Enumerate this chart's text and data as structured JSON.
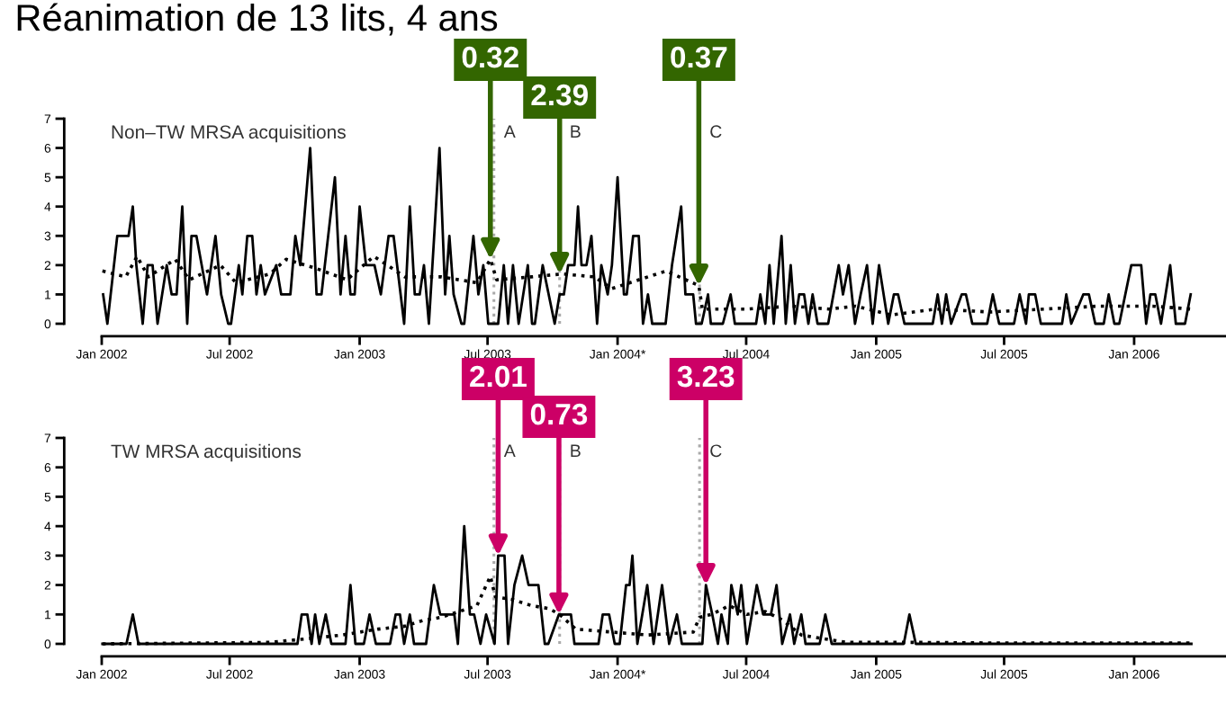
{
  "chart_data": [
    {
      "type": "line",
      "title": "Réanimation de 13 lits, 4 ans",
      "subtitle": "Non–TW MRSA acquisitions",
      "xlim": [
        "2002-01-01",
        "2006-05-11"
      ],
      "xticks": [
        {
          "value": "2002-01-01",
          "label": "Jan 2002"
        },
        {
          "value": "2002-07-01",
          "label": "Jul 2002"
        },
        {
          "value": "2003-01-01",
          "label": "Jan 2003"
        },
        {
          "value": "2003-07-01",
          "label": "Jul 2003"
        },
        {
          "value": "2004-01-01",
          "label": "Jan 2004*"
        },
        {
          "value": "2004-07-01",
          "label": "Jul 2004"
        },
        {
          "value": "2005-01-01",
          "label": "Jan 2005"
        },
        {
          "value": "2005-07-01",
          "label": "Jul 2005"
        },
        {
          "value": "2006-01-01",
          "label": "Jan 2006"
        }
      ],
      "ylim": [
        0,
        7
      ],
      "yticks": [
        0,
        1,
        2,
        3,
        4,
        5,
        6,
        7
      ],
      "ref_lines": [
        {
          "axis": "x",
          "value": "2003-07-10",
          "label": "A",
          "color": "#aaaaaa",
          "line_style": "dotted"
        },
        {
          "axis": "x",
          "value": "2003-10-11",
          "label": "B",
          "color": "#aaaaaa",
          "line_style": "dotted"
        },
        {
          "axis": "x",
          "value": "2004-04-26",
          "label": "C",
          "color": "#aaaaaa",
          "line_style": "dotted"
        }
      ],
      "annotations": [
        {
          "text": "0.32",
          "x": "2003-07-05",
          "y": 2.2
        },
        {
          "text": "2.39",
          "x": "2003-10-11",
          "y": 1.7
        },
        {
          "text": "0.37",
          "x": "2004-04-25",
          "y": 1.3
        }
      ],
      "series": [
        {
          "color": "#000000",
          "line_style": "solid",
          "x": [
            "2002-01-03",
            "2002-01-09",
            "2002-01-23",
            "2002-02-08",
            "2002-02-14",
            "2002-02-19",
            "2002-02-28",
            "2002-03-07",
            "2002-03-14",
            "2002-03-21",
            "2002-04-03",
            "2002-04-10",
            "2002-04-17",
            "2002-04-25",
            "2002-05-02",
            "2002-05-08",
            "2002-05-15",
            "2002-05-30",
            "2002-06-11",
            "2002-06-19",
            "2002-06-29",
            "2002-07-03",
            "2002-07-14",
            "2002-07-19",
            "2002-07-26",
            "2002-08-02",
            "2002-08-08",
            "2002-08-14",
            "2002-08-20",
            "2002-09-05",
            "2002-09-12",
            "2002-09-25",
            "2002-10-02",
            "2002-10-09",
            "2002-10-23",
            "2002-11-01",
            "2002-11-08",
            "2002-11-27",
            "2002-12-05",
            "2002-12-12",
            "2002-12-19",
            "2002-12-25",
            "2003-01-01",
            "2003-01-10",
            "2003-01-22",
            "2003-01-31",
            "2003-02-11",
            "2003-02-18",
            "2003-03-05",
            "2003-03-13",
            "2003-03-20",
            "2003-03-27",
            "2003-04-02",
            "2003-04-09",
            "2003-04-24",
            "2003-05-02",
            "2003-05-08",
            "2003-05-14",
            "2003-05-25",
            "2003-05-29",
            "2003-06-11",
            "2003-06-18",
            "2003-06-25",
            "2003-07-02",
            "2003-07-16",
            "2003-07-24",
            "2003-07-30",
            "2003-08-06",
            "2003-08-14",
            "2003-08-27",
            "2003-09-02",
            "2003-09-06",
            "2003-09-17",
            "2003-10-04",
            "2003-10-11",
            "2003-10-17",
            "2003-10-23",
            "2003-11-01",
            "2003-11-06",
            "2003-11-11",
            "2003-11-18",
            "2003-11-25",
            "2003-12-03",
            "2003-12-09",
            "2003-12-18",
            "2003-12-24",
            "2004-01-01",
            "2004-01-10",
            "2004-01-14",
            "2004-01-23",
            "2004-01-31",
            "2004-02-06",
            "2004-02-13",
            "2004-02-19",
            "2004-03-09",
            "2004-03-18",
            "2004-03-31",
            "2004-04-06",
            "2004-04-17",
            "2004-04-21",
            "2004-04-29",
            "2004-05-08",
            "2004-05-12",
            "2004-05-29",
            "2004-06-09",
            "2004-06-15",
            "2004-07-15",
            "2004-07-21",
            "2004-07-28",
            "2004-08-03",
            "2004-08-09",
            "2004-08-20",
            "2004-08-26",
            "2004-09-02",
            "2004-09-08",
            "2004-09-14",
            "2004-09-21",
            "2004-09-27",
            "2004-10-03",
            "2004-10-10",
            "2004-10-25",
            "2004-11-09",
            "2004-11-15",
            "2004-11-23",
            "2004-12-02",
            "2004-12-10",
            "2004-12-19",
            "2004-12-27",
            "2005-01-05",
            "2005-01-18",
            "2005-01-26",
            "2005-02-01",
            "2005-02-10",
            "2005-03-22",
            "2005-03-29",
            "2005-04-04",
            "2005-04-10",
            "2005-04-17",
            "2005-05-02",
            "2005-05-08",
            "2005-05-17",
            "2005-06-07",
            "2005-06-15",
            "2005-06-24",
            "2005-07-15",
            "2005-07-23",
            "2005-08-01",
            "2005-08-05",
            "2005-08-14",
            "2005-08-22",
            "2005-09-21",
            "2005-09-27",
            "2005-10-04",
            "2005-10-21",
            "2005-10-29",
            "2005-11-07",
            "2005-11-19",
            "2005-11-26",
            "2005-12-04",
            "2005-12-11",
            "2005-12-28",
            "2006-01-11",
            "2006-01-18",
            "2006-01-24",
            "2006-01-31",
            "2006-02-08",
            "2006-02-21",
            "2006-03-01",
            "2006-03-14",
            "2006-03-22"
          ],
          "values": [
            1,
            0,
            3,
            3,
            4,
            2,
            0,
            2,
            2,
            0,
            2,
            1,
            1,
            4,
            0,
            3,
            3,
            1,
            3,
            1,
            0,
            0,
            2,
            1,
            3,
            3,
            1,
            2,
            1,
            2,
            1,
            1,
            3,
            2,
            6,
            1,
            1,
            5,
            1,
            3,
            1,
            1,
            4,
            2,
            2,
            1,
            3,
            3,
            0,
            4,
            1,
            1,
            2,
            0,
            6,
            1,
            3,
            1,
            0,
            0,
            3,
            1,
            2,
            0,
            0,
            2,
            0,
            2,
            0,
            2,
            0,
            0,
            2,
            0,
            1,
            1,
            2,
            2,
            4,
            2,
            2,
            3,
            0,
            2,
            1,
            2,
            5,
            1,
            1,
            3,
            3,
            0,
            1,
            0,
            0,
            2,
            4,
            1,
            1,
            0,
            0,
            1,
            0,
            0,
            1,
            0,
            0,
            1,
            0,
            2,
            0,
            3,
            0,
            2,
            0,
            1,
            1,
            0,
            1,
            0,
            0,
            2,
            1,
            2,
            0,
            1,
            2,
            0,
            2,
            0,
            1,
            1,
            0,
            0,
            1,
            0,
            1,
            0,
            1,
            1,
            0,
            0,
            1,
            0,
            0,
            1,
            0,
            1,
            1,
            0,
            0,
            1,
            0,
            1,
            1,
            0,
            0,
            1,
            0,
            0,
            2,
            2,
            0,
            1,
            1,
            0,
            2,
            0,
            0,
            1
          ]
        },
        {
          "color": "#000000",
          "line_style": "dotted",
          "x": [
            "2002-01-02",
            "2002-02-04",
            "2002-02-20",
            "2002-03-08",
            "2002-04-15",
            "2002-05-05",
            "2002-06-18",
            "2002-07-10",
            "2002-08-27",
            "2002-09-19",
            "2002-10-30",
            "2002-12-14",
            "2003-01-21",
            "2003-03-06",
            "2003-04-26",
            "2003-06-16",
            "2003-07-05",
            "2003-07-14",
            "2003-09-01",
            "2003-10-15",
            "2003-11-29",
            "2003-12-24",
            "2004-02-13",
            "2004-03-10",
            "2004-04-25",
            "2004-04-30",
            "2004-07-02",
            "2004-09-04",
            "2004-10-26",
            "2004-12-03",
            "2005-01-22",
            "2005-03-27",
            "2005-06-11",
            "2005-08-27",
            "2005-11-11",
            "2006-01-27",
            "2006-03-23"
          ],
          "values": [
            1.8,
            1.6,
            2.3,
            1.6,
            2.2,
            1.5,
            2.0,
            1.4,
            1.7,
            2.2,
            1.9,
            1.5,
            2.3,
            1.6,
            1.6,
            1.4,
            2.2,
            1.5,
            1.6,
            1.7,
            1.6,
            1.2,
            1.6,
            1.8,
            1.3,
            0.5,
            0.5,
            0.6,
            0.5,
            0.6,
            0.3,
            0.5,
            0.4,
            0.5,
            0.6,
            0.6,
            0.5
          ]
        }
      ]
    },
    {
      "type": "line",
      "subtitle": "TW MRSA acquisitions",
      "xlim": [
        "2002-01-01",
        "2006-05-11"
      ],
      "xticks": [
        {
          "value": "2002-01-01",
          "label": "Jan 2002"
        },
        {
          "value": "2002-07-01",
          "label": "Jul 2002"
        },
        {
          "value": "2003-01-01",
          "label": "Jan 2003"
        },
        {
          "value": "2003-07-01",
          "label": "Jul 2003"
        },
        {
          "value": "2004-01-01",
          "label": "Jan 2004*"
        },
        {
          "value": "2004-07-01",
          "label": "Jul 2004"
        },
        {
          "value": "2005-01-01",
          "label": "Jan 2005"
        },
        {
          "value": "2005-07-01",
          "label": "Jul 2005"
        },
        {
          "value": "2006-01-01",
          "label": "Jan 2006"
        }
      ],
      "ylim": [
        0,
        7
      ],
      "yticks": [
        0,
        1,
        2,
        3,
        4,
        5,
        6,
        7
      ],
      "ref_lines": [
        {
          "axis": "x",
          "value": "2003-07-10",
          "label": "A",
          "color": "#aaaaaa",
          "line_style": "dotted"
        },
        {
          "axis": "x",
          "value": "2003-10-11",
          "label": "B",
          "color": "#aaaaaa",
          "line_style": "dotted"
        },
        {
          "axis": "x",
          "value": "2004-04-26",
          "label": "C",
          "color": "#aaaaaa",
          "line_style": "dotted"
        }
      ],
      "annotations": [
        {
          "text": "2.01",
          "x": "2003-07-16",
          "y": 3
        },
        {
          "text": "0.73",
          "x": "2003-10-10",
          "y": 1
        },
        {
          "text": "3.23",
          "x": "2004-05-05",
          "y": 2
        }
      ],
      "series": [
        {
          "color": "#000000",
          "line_style": "solid",
          "x": [
            "2002-01-02",
            "2002-02-05",
            "2002-02-14",
            "2002-02-22",
            "2002-10-05",
            "2002-10-11",
            "2002-10-19",
            "2002-10-25",
            "2002-10-30",
            "2002-11-05",
            "2002-11-14",
            "2002-11-22",
            "2002-12-12",
            "2002-12-19",
            "2002-12-26",
            "2003-01-07",
            "2003-01-15",
            "2003-01-24",
            "2003-02-13",
            "2003-02-21",
            "2003-02-27",
            "2003-03-05",
            "2003-03-13",
            "2003-03-19",
            "2003-04-05",
            "2003-04-16",
            "2003-04-25",
            "2003-05-15",
            "2003-05-20",
            "2003-05-29",
            "2003-06-06",
            "2003-06-12",
            "2003-06-21",
            "2003-06-29",
            "2003-07-11",
            "2003-07-16",
            "2003-07-25",
            "2003-07-30",
            "2003-08-08",
            "2003-08-19",
            "2003-08-28",
            "2003-09-11",
            "2003-09-20",
            "2003-09-25",
            "2003-10-10",
            "2003-10-15",
            "2003-10-27",
            "2003-11-01",
            "2003-12-05",
            "2003-12-11",
            "2003-12-20",
            "2003-12-28",
            "2004-01-04",
            "2004-01-13",
            "2004-01-18",
            "2004-01-22",
            "2004-01-29",
            "2004-02-12",
            "2004-02-21",
            "2004-03-04",
            "2004-03-14",
            "2004-03-25",
            "2004-04-01",
            "2004-04-30",
            "2004-05-05",
            "2004-05-14",
            "2004-05-22",
            "2004-05-27",
            "2004-06-05",
            "2004-06-10",
            "2004-06-19",
            "2004-06-24",
            "2004-07-02",
            "2004-07-16",
            "2004-07-25",
            "2004-08-05",
            "2004-08-13",
            "2004-08-21",
            "2004-09-01",
            "2004-09-07",
            "2004-09-17",
            "2004-09-23",
            "2004-10-13",
            "2004-10-21",
            "2004-10-30",
            "2005-02-09",
            "2005-02-17",
            "2005-02-26",
            "2006-03-23"
          ],
          "values": [
            0,
            0,
            1,
            0,
            0,
            1,
            1,
            0,
            1,
            0,
            1,
            0,
            0,
            2,
            0,
            0,
            1,
            0,
            0,
            1,
            1,
            0,
            1,
            0,
            0,
            2,
            1,
            1,
            0,
            4,
            1,
            1,
            0,
            1,
            0,
            3,
            3,
            0,
            2,
            3,
            2,
            2,
            0,
            0,
            1,
            1,
            1,
            0,
            0,
            1,
            1,
            0,
            0,
            2,
            2,
            3,
            0,
            2,
            0,
            2,
            0,
            1,
            0,
            0,
            2,
            1,
            0,
            1,
            0,
            2,
            1,
            2,
            0,
            2,
            1,
            1,
            2,
            0,
            1,
            0,
            1,
            0,
            0,
            1,
            0,
            0,
            1,
            0,
            0
          ]
        },
        {
          "color": "#000000",
          "line_style": "dotted",
          "x": [
            "2002-01-02",
            "2002-08-27",
            "2002-10-30",
            "2002-12-07",
            "2003-01-27",
            "2003-03-06",
            "2003-04-01",
            "2003-04-26",
            "2003-05-22",
            "2003-06-16",
            "2003-07-05",
            "2003-07-12",
            "2003-08-06",
            "2003-09-01",
            "2003-09-26",
            "2003-10-11",
            "2003-11-03",
            "2003-12-24",
            "2004-02-13",
            "2004-04-17",
            "2004-04-26",
            "2004-05-13",
            "2004-06-07",
            "2004-07-02",
            "2004-07-28",
            "2004-08-22",
            "2004-09-17",
            "2004-10-12",
            "2004-11-20",
            "2005-03-01",
            "2005-06-11",
            "2006-03-23"
          ],
          "values": [
            0,
            0.05,
            0.2,
            0.3,
            0.5,
            0.6,
            0.8,
            0.9,
            1.1,
            1.3,
            2.3,
            1.6,
            1.5,
            1.3,
            1.2,
            1.0,
            0.5,
            0.4,
            0.3,
            0.4,
            0.9,
            1.0,
            1.3,
            1.0,
            1.1,
            0.8,
            0.3,
            0.2,
            0.05,
            0.05,
            0.03,
            0.03
          ]
        }
      ]
    }
  ]
}
